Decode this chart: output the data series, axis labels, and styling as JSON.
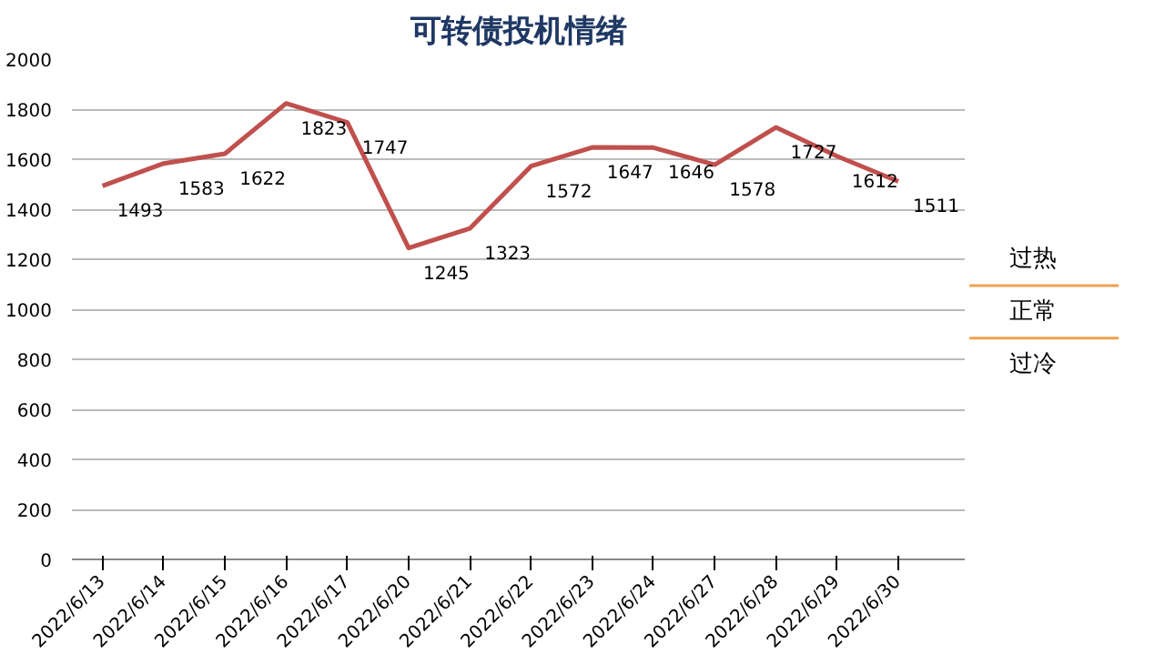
{
  "chart_data": {
    "type": "line",
    "title": "可转债投机情绪",
    "categories": [
      "2022/6/13",
      "2022/6/14",
      "2022/6/15",
      "2022/6/16",
      "2022/6/17",
      "2022/6/20",
      "2022/6/21",
      "2022/6/22",
      "2022/6/23",
      "2022/6/24",
      "2022/6/27",
      "2022/6/28",
      "2022/6/29",
      "2022/6/30"
    ],
    "series": [
      {
        "color": "#c0504d",
        "values": [
          1493,
          1583,
          1622,
          1823,
          1747,
          1245,
          1323,
          1572,
          1647,
          1646,
          1578,
          1727,
          1612,
          1511
        ]
      }
    ],
    "ylim": [
      0,
      2000
    ],
    "yticks": [
      0,
      200,
      400,
      600,
      800,
      1000,
      1200,
      1400,
      1600,
      1800,
      2000
    ],
    "grid": "y",
    "data_labels": true,
    "marker": "none",
    "line_style": "solid",
    "annotations": [
      "过热",
      "正常",
      "过冷"
    ]
  }
}
